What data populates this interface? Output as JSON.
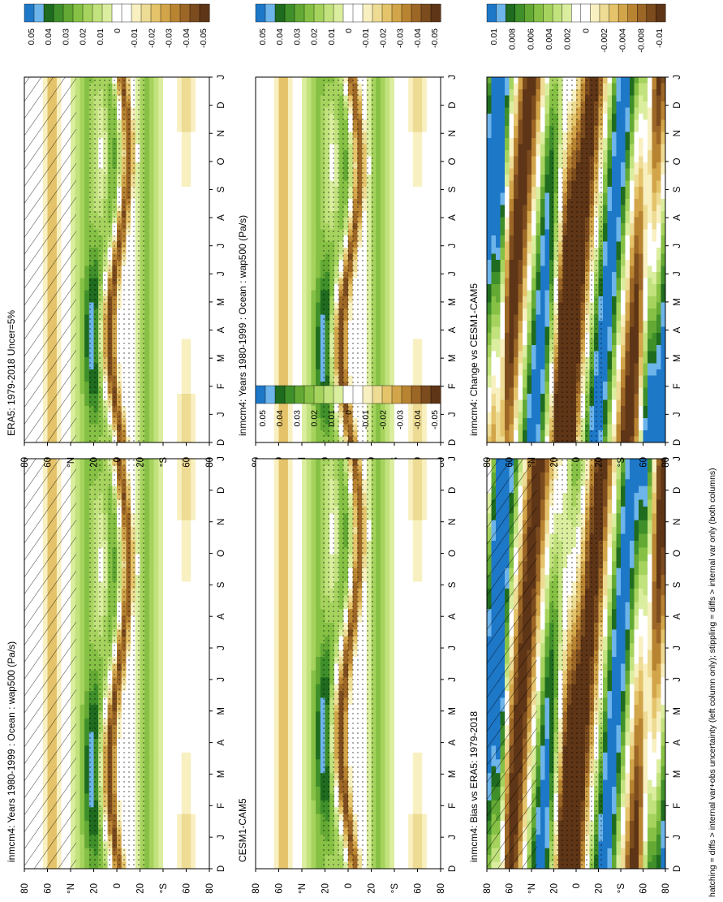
{
  "footnote": "hatching = diffs > internal var+obs uncertainty (left column only); stippling = diffs > internal var only (both columns)",
  "months": [
    "D",
    "J",
    "F",
    "M",
    "A",
    "M",
    "J",
    "J",
    "A",
    "S",
    "O",
    "N",
    "D",
    "J"
  ],
  "lat_ticks": [
    "80",
    "60",
    "°N",
    "20",
    "0",
    "20",
    "°S",
    "60",
    "80"
  ],
  "panels": [
    {
      "id": "p1",
      "title": "inmcm4: Years 1980-1999 : Ocean : wap500 (Pa/s)",
      "scale": "abs",
      "hatch": true,
      "stipple": true,
      "ph": 0.0
    },
    {
      "id": "p2",
      "title": "inmcm4: Years 1980-1999 : Ocean : wap500 (Pa/s)",
      "scale": "abs",
      "hatch": false,
      "stipple": true,
      "ph": 0.2
    },
    {
      "id": "p3",
      "title": "ERA5: 1979-2018 Uncer=5%",
      "scale": "abs",
      "hatch": true,
      "stipple": true,
      "ph": 0.5
    },
    {
      "id": "p4",
      "title": "CESM1-CAM5",
      "scale": "abs",
      "hatch": false,
      "stipple": true,
      "ph": 0.8
    },
    {
      "id": "p5",
      "title": "inmcm4: Bias vs ERA5: 1979-2018",
      "scale": "diff",
      "hatch": true,
      "stipple": true,
      "ph": 1.2
    },
    {
      "id": "p6",
      "title": "inmcm4: Change vs CESM1-CAM5",
      "scale": "diff",
      "hatch": false,
      "stipple": true,
      "ph": 1.6
    }
  ],
  "colorbars": {
    "abs": [
      "0.05",
      "0.04",
      "0.03",
      "0.02",
      "0.01",
      "0",
      "-0.01",
      "-0.02",
      "-0.03",
      "-0.04",
      "-0.05"
    ],
    "diff": [
      "0.01",
      "0.008",
      "0.006",
      "0.004",
      "0.002",
      "0",
      "-0.002",
      "-0.004",
      "-0.008",
      "-0.01"
    ]
  },
  "palette": [
    "#1e78c8",
    "#6cb4ea",
    "#1f6b1f",
    "#3f8f2a",
    "#63a934",
    "#86c145",
    "#a6d35e",
    "#c2e27e",
    "#dbee9f",
    "#ffffff",
    "#ffffff",
    "#f8f0c0",
    "#eedb94",
    "#e4c36a",
    "#d2a54a",
    "#b98432",
    "#9c6626",
    "#7c4c1e",
    "#5e3516"
  ],
  "chart_data": [
    {
      "type": "heatmap",
      "title": "inmcm4: Years 1980-1999 : Ocean : wap500 (Pa/s)",
      "x_ticks": [
        "D",
        "J",
        "F",
        "M",
        "A",
        "M",
        "J",
        "J",
        "A",
        "S",
        "O",
        "N",
        "D",
        "J"
      ],
      "y_ticks": [
        "80",
        "60",
        "°N",
        "20",
        "0",
        "20",
        "°S",
        "60",
        "80"
      ],
      "colorbar": [
        "0.05",
        "0.04",
        "0.03",
        "0.02",
        "0.01",
        "0",
        "-0.01",
        "-0.02",
        "-0.03",
        "-0.04",
        "-0.05"
      ]
    },
    {
      "type": "heatmap",
      "title": "inmcm4: Years 1980-1999 : Ocean : wap500 (Pa/s)",
      "x_ticks": [
        "D",
        "J",
        "F",
        "M",
        "A",
        "M",
        "J",
        "J",
        "A",
        "S",
        "O",
        "N",
        "D",
        "J"
      ],
      "y_ticks": [
        "80",
        "60",
        "°N",
        "20",
        "0",
        "20",
        "°S",
        "60",
        "80"
      ],
      "colorbar": [
        "0.05",
        "0.04",
        "0.03",
        "0.02",
        "0.01",
        "0",
        "-0.01",
        "-0.02",
        "-0.03",
        "-0.04",
        "-0.05"
      ]
    },
    {
      "type": "heatmap",
      "title": "ERA5: 1979-2018 Uncer=5%",
      "x_ticks": [
        "D",
        "J",
        "F",
        "M",
        "A",
        "M",
        "J",
        "J",
        "A",
        "S",
        "O",
        "N",
        "D",
        "J"
      ],
      "y_ticks": [
        "80",
        "60",
        "°N",
        "20",
        "0",
        "20",
        "°S",
        "60",
        "80"
      ],
      "colorbar": [
        "0.05",
        "0.04",
        "0.03",
        "0.02",
        "0.01",
        "0",
        "-0.01",
        "-0.02",
        "-0.03",
        "-0.04",
        "-0.05"
      ]
    },
    {
      "type": "heatmap",
      "title": "CESM1-CAM5",
      "x_ticks": [
        "D",
        "J",
        "F",
        "M",
        "A",
        "M",
        "J",
        "J",
        "A",
        "S",
        "O",
        "N",
        "D",
        "J"
      ],
      "y_ticks": [
        "80",
        "60",
        "°N",
        "20",
        "0",
        "20",
        "°S",
        "60",
        "80"
      ],
      "colorbar": [
        "0.05",
        "0.04",
        "0.03",
        "0.02",
        "0.01",
        "0",
        "-0.01",
        "-0.02",
        "-0.03",
        "-0.04",
        "-0.05"
      ]
    },
    {
      "type": "heatmap",
      "title": "inmcm4: Bias vs ERA5: 1979-2018",
      "x_ticks": [
        "D",
        "J",
        "F",
        "M",
        "A",
        "M",
        "J",
        "J",
        "A",
        "S",
        "O",
        "N",
        "D",
        "J"
      ],
      "y_ticks": [
        "80",
        "60",
        "°N",
        "20",
        "0",
        "20",
        "°S",
        "60",
        "80"
      ],
      "colorbar": [
        "0.01",
        "0.008",
        "0.006",
        "0.004",
        "0.002",
        "0",
        "-0.002",
        "-0.004",
        "-0.008",
        "-0.01"
      ]
    },
    {
      "type": "heatmap",
      "title": "inmcm4: Change vs CESM1-CAM5",
      "x_ticks": [
        "D",
        "J",
        "F",
        "M",
        "A",
        "M",
        "J",
        "J",
        "A",
        "S",
        "O",
        "N",
        "D",
        "J"
      ],
      "y_ticks": [
        "80",
        "60",
        "°N",
        "20",
        "0",
        "20",
        "°S",
        "60",
        "80"
      ],
      "colorbar": [
        "0.01",
        "0.008",
        "0.006",
        "0.004",
        "0.002",
        "0",
        "-0.002",
        "-0.004",
        "-0.008",
        "-0.01"
      ]
    }
  ]
}
